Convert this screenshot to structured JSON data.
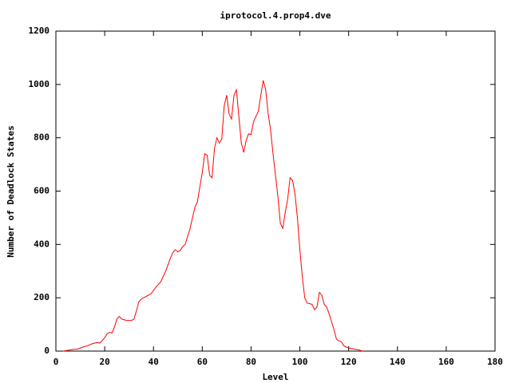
{
  "chart_data": {
    "type": "line",
    "title": "iprotocol.4.prop4.dve",
    "x_label": "Level",
    "y_label": "Number of Deadlock States",
    "color": "#ff0000",
    "x": [
      3,
      5,
      7,
      9,
      11,
      13,
      15,
      17,
      18,
      20,
      21,
      22,
      23,
      24,
      25,
      26,
      27,
      29,
      31,
      32,
      33,
      34,
      35,
      37,
      39,
      41,
      43,
      45,
      47,
      48,
      49,
      50,
      51,
      52,
      53,
      55,
      57,
      58,
      60,
      61,
      62,
      63,
      64,
      65,
      66,
      67,
      68,
      69,
      70,
      71,
      72,
      73,
      74,
      75,
      76,
      77,
      78,
      79,
      80,
      81,
      82,
      83,
      84,
      85,
      86,
      87,
      88,
      89,
      90,
      91,
      92,
      93,
      94,
      95,
      96,
      97,
      98,
      99,
      100,
      101,
      102,
      103,
      104,
      105,
      106,
      107,
      108,
      109,
      110,
      111,
      112,
      113,
      114,
      115,
      116,
      117,
      118,
      119,
      120,
      122,
      124,
      125,
      126
    ],
    "values": [
      0,
      3,
      6,
      8,
      15,
      20,
      28,
      32,
      30,
      50,
      65,
      70,
      68,
      90,
      120,
      130,
      120,
      115,
      115,
      120,
      150,
      185,
      195,
      205,
      215,
      240,
      260,
      300,
      350,
      370,
      380,
      372,
      378,
      392,
      400,
      460,
      540,
      560,
      670,
      740,
      735,
      660,
      650,
      760,
      800,
      780,
      795,
      920,
      960,
      890,
      870,
      960,
      980,
      880,
      780,
      745,
      790,
      815,
      812,
      860,
      880,
      900,
      960,
      1015,
      980,
      890,
      830,
      740,
      660,
      580,
      480,
      460,
      520,
      570,
      650,
      640,
      590,
      500,
      380,
      280,
      200,
      180,
      178,
      175,
      155,
      165,
      220,
      210,
      175,
      165,
      140,
      110,
      80,
      45,
      38,
      35,
      20,
      15,
      12,
      8,
      5,
      2,
      0
    ],
    "xlim": [
      0,
      180
    ],
    "xticks": [
      0,
      20,
      40,
      60,
      80,
      100,
      120,
      140,
      160,
      180
    ],
    "ylim": [
      0,
      1200
    ],
    "yticks": [
      0,
      200,
      400,
      600,
      800,
      1000,
      1200
    ]
  }
}
